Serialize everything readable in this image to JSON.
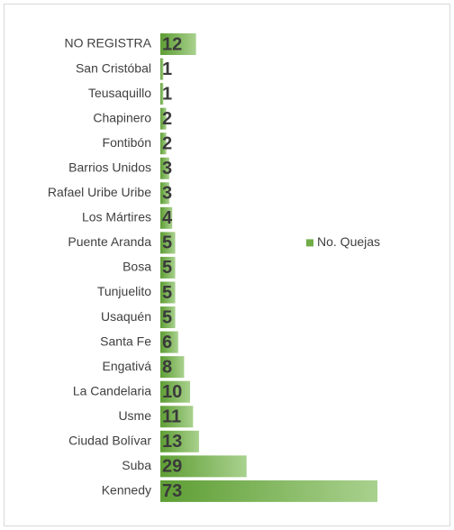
{
  "chart_data": {
    "type": "bar",
    "orientation": "horizontal",
    "categories": [
      "NO REGISTRA",
      "San Cristóbal",
      "Teusaquillo",
      "Chapinero",
      "Fontibón",
      "Barrios Unidos",
      "Rafael Uribe Uribe",
      "Los Mártires",
      "Puente Aranda",
      "Bosa",
      "Tunjuelito",
      "Usaquén",
      "Santa Fe",
      "Engativá",
      "La Candelaria",
      "Usme",
      "Ciudad Bolívar",
      "Suba",
      "Kennedy"
    ],
    "series": [
      {
        "name": "No. Quejas",
        "color": "#70ad47",
        "values": [
          12,
          1,
          1,
          2,
          2,
          3,
          3,
          4,
          5,
          5,
          5,
          5,
          6,
          8,
          10,
          11,
          13,
          29,
          73
        ]
      }
    ],
    "legend": "right"
  }
}
